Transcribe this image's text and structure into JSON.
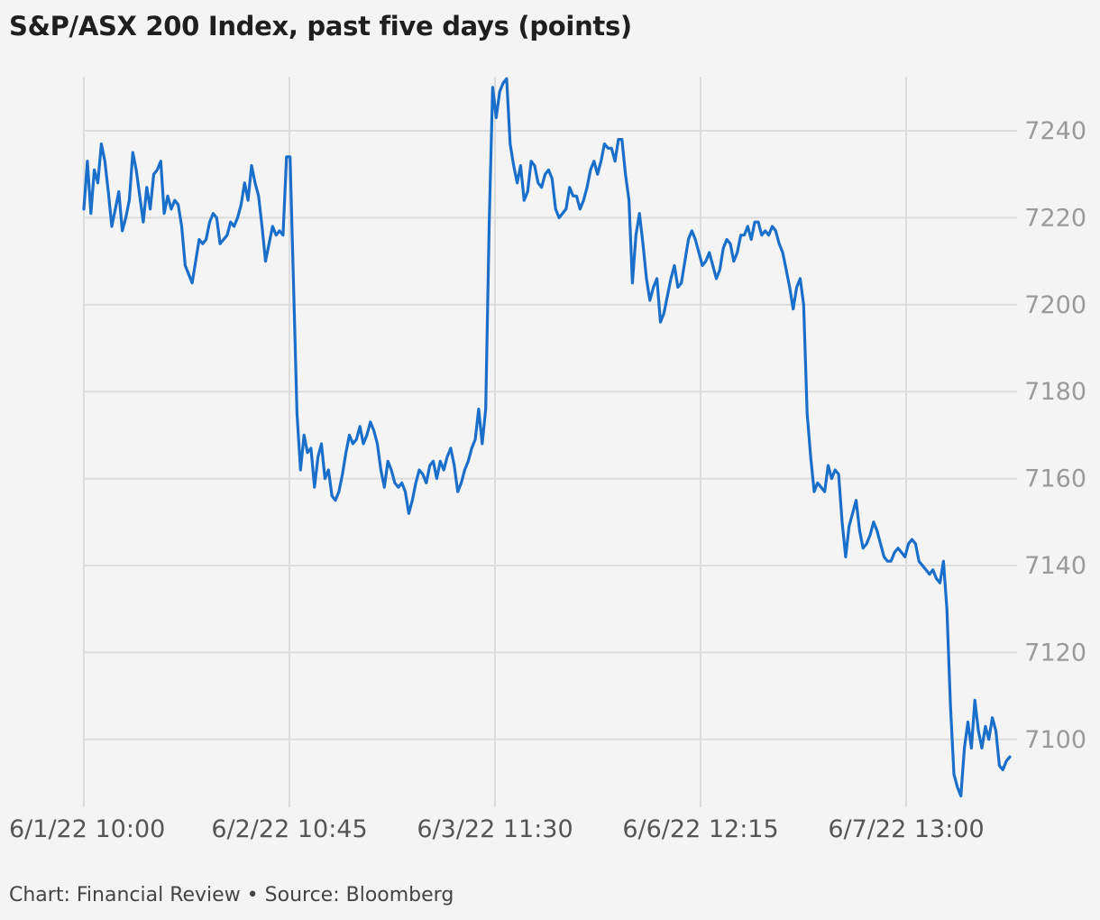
{
  "chart_data": {
    "type": "line",
    "title": "S&P/ASX 200 Index, past five days (points)",
    "xlabel": "",
    "ylabel": "",
    "x_tick_labels": [
      "6/1/22 10:00",
      "6/2/22 10:45",
      "6/3/22 11:30",
      "6/6/22 12:15",
      "6/7/22 13:00"
    ],
    "y_ticks": [
      7100,
      7120,
      7140,
      7160,
      7180,
      7200,
      7220,
      7240
    ],
    "ylim": [
      7086,
      7252
    ],
    "grid": true,
    "line_color": "#1a6fcb",
    "series": [
      {
        "values": [
          7222,
          7233,
          7221,
          7231,
          7228,
          7237,
          7233,
          7226,
          7218,
          7222,
          7226,
          7217,
          7220,
          7224,
          7235,
          7231,
          7225,
          7219,
          7227,
          7222,
          7230,
          7231,
          7233,
          7221,
          7225,
          7222,
          7224,
          7223,
          7218,
          7209,
          7207,
          7205,
          7210,
          7215,
          7214,
          7215,
          7219,
          7221,
          7220,
          7214,
          7215,
          7216,
          7219,
          7218,
          7220,
          7223,
          7228,
          7224,
          7232,
          7228,
          7225,
          7218,
          7210,
          7214,
          7218,
          7216,
          7217,
          7216,
          7234,
          7234,
          7205,
          7175,
          7162,
          7170,
          7166,
          7167,
          7158,
          7165,
          7168,
          7160,
          7162,
          7156,
          7155,
          7157,
          7161,
          7166,
          7170,
          7168,
          7169,
          7172,
          7168,
          7170,
          7173,
          7171,
          7168,
          7162,
          7158,
          7164,
          7162,
          7159,
          7158,
          7159,
          7157,
          7152,
          7155,
          7159,
          7162,
          7161,
          7159,
          7163,
          7164,
          7160,
          7164,
          7162,
          7165,
          7167,
          7163,
          7157,
          7159,
          7162,
          7164,
          7167,
          7169,
          7176,
          7168,
          7176,
          7219,
          7250,
          7243,
          7249,
          7251,
          7252,
          7237,
          7232,
          7228,
          7232,
          7224,
          7226,
          7233,
          7232,
          7228,
          7227,
          7230,
          7231,
          7229,
          7222,
          7220,
          7221,
          7222,
          7227,
          7225,
          7225,
          7222,
          7224,
          7227,
          7231,
          7233,
          7230,
          7233,
          7237,
          7236,
          7236,
          7233,
          7238,
          7238,
          7230,
          7224,
          7205,
          7216,
          7221,
          7214,
          7206,
          7201,
          7204,
          7206,
          7196,
          7198,
          7202,
          7206,
          7209,
          7204,
          7205,
          7210,
          7215,
          7217,
          7215,
          7212,
          7209,
          7210,
          7212,
          7209,
          7206,
          7208,
          7213,
          7215,
          7214,
          7210,
          7212,
          7216,
          7216,
          7218,
          7215,
          7219,
          7219,
          7216,
          7217,
          7216,
          7218,
          7217,
          7214,
          7212,
          7208,
          7204,
          7199,
          7204,
          7206,
          7200,
          7175,
          7165,
          7157,
          7159,
          7158,
          7157,
          7163,
          7160,
          7162,
          7161,
          7150,
          7142,
          7149,
          7152,
          7155,
          7148,
          7144,
          7145,
          7147,
          7150,
          7148,
          7145,
          7142,
          7141,
          7141,
          7143,
          7144,
          7143,
          7142,
          7145,
          7146,
          7145,
          7141,
          7140,
          7139,
          7138,
          7139,
          7137,
          7136,
          7141,
          7130,
          7108,
          7092,
          7089,
          7087,
          7098,
          7104,
          7098,
          7109,
          7102,
          7098,
          7103,
          7100,
          7105,
          7102,
          7094,
          7093,
          7095,
          7096
        ]
      }
    ]
  },
  "footer": {
    "text": "Chart: Financial Review • Source: Bloomberg"
  }
}
